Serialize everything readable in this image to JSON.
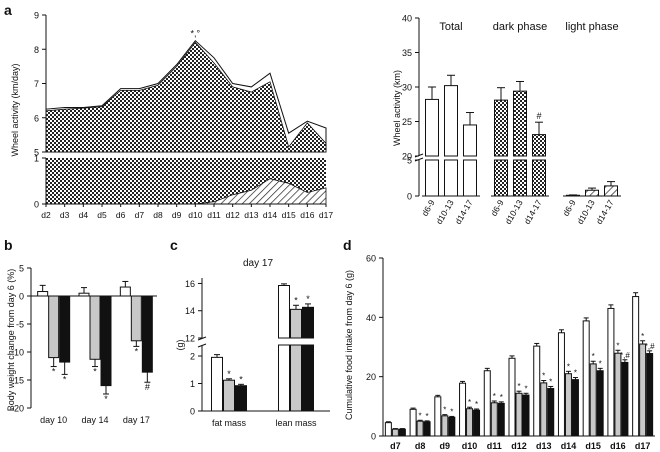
{
  "panels": {
    "a": "a",
    "b": "b",
    "c": "c",
    "d": "d"
  },
  "chart_data": [
    {
      "id": "a-left",
      "type": "area",
      "ylabel": "Wheel activity (km/day)",
      "categories": [
        "d2",
        "d3",
        "d4",
        "d5",
        "d6",
        "d7",
        "d8",
        "d9",
        "d10",
        "d11",
        "d12",
        "d13",
        "d14",
        "d15",
        "d16",
        "d17"
      ],
      "ylim_upper": [
        5,
        9
      ],
      "ylim_lower": [
        0,
        1
      ],
      "yticks_upper": [
        5,
        6,
        7,
        8,
        9
      ],
      "yticks_lower": [
        0,
        1
      ],
      "series": [
        {
          "values": [
            6.25,
            6.3,
            6.3,
            6.35,
            6.85,
            6.85,
            7.0,
            7.55,
            8.25,
            7.75,
            7.0,
            6.9,
            7.3,
            5.55,
            5.9,
            5.7
          ]
        },
        {
          "values": [
            6.2,
            6.25,
            6.28,
            6.32,
            6.8,
            6.8,
            6.95,
            7.5,
            8.2,
            7.6,
            6.9,
            6.75,
            7.05,
            5.15,
            5.85,
            5.25
          ]
        },
        {
          "values": [
            0,
            0,
            0,
            0,
            0,
            0,
            0,
            0,
            0,
            0.05,
            0.2,
            0.3,
            0.55,
            0.45,
            0.25,
            0.35
          ]
        }
      ],
      "annotations": [
        {
          "x": "d10",
          "text": "*,°"
        }
      ]
    },
    {
      "id": "a-right",
      "type": "bar",
      "ylabel": "Wheel activity (km)",
      "yticks": [
        0,
        5,
        20,
        25,
        30,
        35,
        40
      ],
      "groups": [
        {
          "title": "Total",
          "categories": [
            "d6-9",
            "d10-13",
            "d14-17"
          ],
          "values": [
            28.2,
            30.2,
            24.5
          ],
          "errors": [
            1.8,
            1.5,
            1.8
          ],
          "marks": [
            "",
            "",
            ""
          ]
        },
        {
          "title": "dark phase",
          "categories": [
            "d6-9",
            "d10-13",
            "d14-17"
          ],
          "values": [
            28.1,
            29.4,
            23.1
          ],
          "errors": [
            1.8,
            1.4,
            1.8
          ],
          "marks": [
            "",
            "",
            "#"
          ]
        },
        {
          "title": "light phase",
          "categories": [
            "d6-9",
            "d10-13",
            "d14-17"
          ],
          "values": [
            0.1,
            0.8,
            1.4
          ],
          "errors": [
            0.05,
            0.3,
            0.6
          ],
          "marks": [
            "",
            "",
            ""
          ]
        }
      ]
    },
    {
      "id": "b",
      "type": "bar",
      "ylabel": "Body weight change from day 6 (%)",
      "ylim": [
        -20,
        5
      ],
      "yticks": [
        -20,
        -15,
        -10,
        -5,
        0,
        5
      ],
      "categories": [
        "day 10",
        "day 14",
        "day 17"
      ],
      "series": [
        {
          "values": [
            0.8,
            0.5,
            1.6
          ],
          "errors": [
            1.1,
            1.0,
            1.0
          ],
          "marks": [
            "",
            "",
            ""
          ]
        },
        {
          "values": [
            -11.0,
            -11.3,
            -8.0
          ],
          "errors": [
            1.6,
            1.3,
            1.0
          ],
          "marks": [
            "*",
            "*",
            "*"
          ]
        },
        {
          "values": [
            -11.8,
            -16.0,
            -13.6
          ],
          "errors": [
            2.2,
            1.5,
            1.8
          ],
          "marks": [
            "*",
            "*",
            "#"
          ]
        }
      ]
    },
    {
      "id": "c",
      "type": "bar",
      "title": "day 17",
      "ylabel": "(g)",
      "yticks_lower": [
        0,
        1,
        2
      ],
      "yticks_upper": [
        12,
        14,
        16
      ],
      "categories": [
        "fat mass",
        "lean mass"
      ],
      "series": [
        {
          "values": [
            1.95,
            15.85
          ],
          "errors": [
            0.1,
            0.12
          ],
          "marks": [
            "",
            ""
          ]
        },
        {
          "values": [
            1.12,
            14.1
          ],
          "errors": [
            0.05,
            0.3
          ],
          "marks": [
            "*",
            "*"
          ]
        },
        {
          "values": [
            0.92,
            14.25
          ],
          "errors": [
            0.05,
            0.25
          ],
          "marks": [
            "*",
            "*"
          ]
        }
      ]
    },
    {
      "id": "d",
      "type": "bar",
      "ylabel": "Cumulative food intake from day 6 (g)",
      "ylim": [
        0,
        60
      ],
      "yticks": [
        0,
        20,
        40,
        60
      ],
      "categories": [
        "d7",
        "d8",
        "d9",
        "d10",
        "d11",
        "d12",
        "d13",
        "d14",
        "d15",
        "d16",
        "d17"
      ],
      "series": [
        {
          "values": [
            4.5,
            9.0,
            13.2,
            17.8,
            22.0,
            26.2,
            30.3,
            34.8,
            38.8,
            43.0,
            47.0
          ],
          "errors": [
            0.3,
            0.4,
            0.5,
            0.6,
            0.8,
            0.8,
            0.9,
            1.0,
            1.0,
            1.2,
            1.3
          ],
          "marks": [
            "",
            "",
            "",
            "",
            "",
            "",
            "",
            "",
            "",
            "",
            ""
          ]
        },
        {
          "values": [
            2.3,
            5.0,
            6.8,
            9.2,
            11.2,
            14.4,
            17.9,
            21.0,
            24.3,
            27.9,
            31.0
          ],
          "errors": [
            0.2,
            0.3,
            0.4,
            0.5,
            0.6,
            0.7,
            0.8,
            0.8,
            0.9,
            1.0,
            1.1
          ],
          "marks": [
            "",
            "*",
            "*",
            "*",
            "*",
            "*",
            "*",
            "*",
            "*",
            "*",
            "*"
          ]
        },
        {
          "values": [
            2.3,
            4.8,
            6.3,
            8.7,
            11.0,
            13.8,
            16.0,
            19.0,
            22.0,
            24.8,
            27.8
          ],
          "errors": [
            0.2,
            0.3,
            0.3,
            0.4,
            0.5,
            0.6,
            0.7,
            0.7,
            0.8,
            0.9,
            0.9
          ],
          "marks": [
            "",
            "*",
            "*",
            "*",
            "*",
            "*",
            "*",
            "*",
            "*",
            "*,#",
            "*,#"
          ]
        }
      ]
    }
  ]
}
